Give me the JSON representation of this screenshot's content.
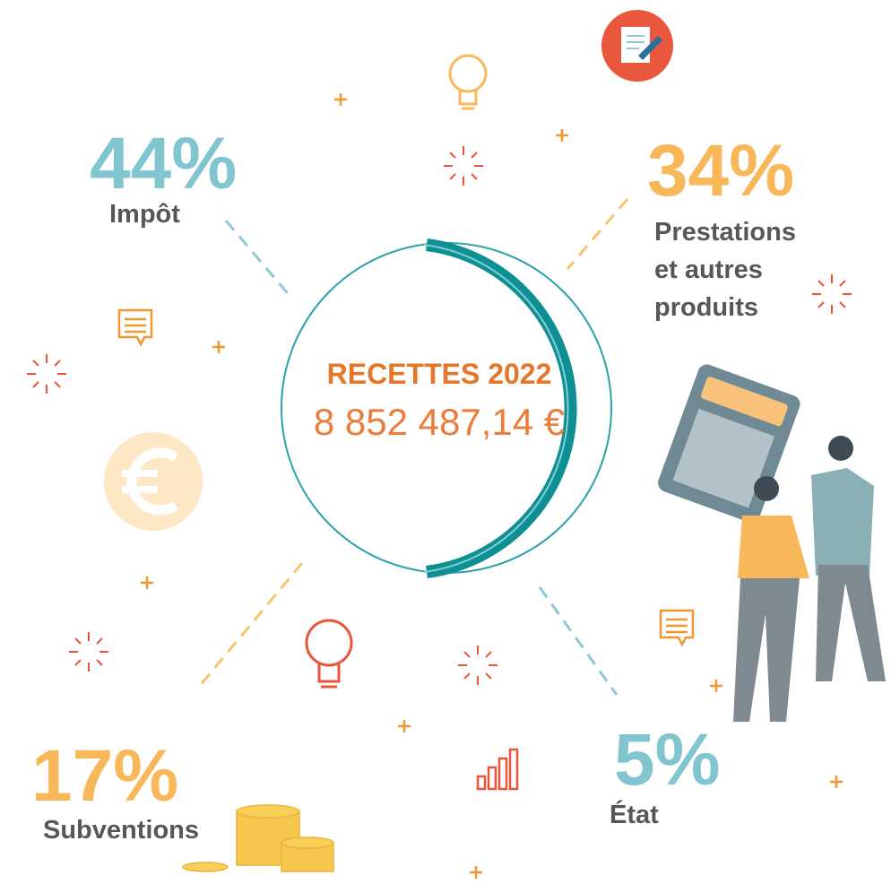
{
  "center": {
    "title": "RECETTES 2022",
    "amount": "8 852 487,14 €"
  },
  "items": [
    {
      "percent": "44%",
      "label": [
        "Impôt"
      ]
    },
    {
      "percent": "34%",
      "label": [
        "Prestations",
        "et autres",
        "produits"
      ]
    },
    {
      "percent": "17%",
      "label": [
        "Subventions"
      ]
    },
    {
      "percent": "5%",
      "label": [
        "État"
      ]
    }
  ]
}
